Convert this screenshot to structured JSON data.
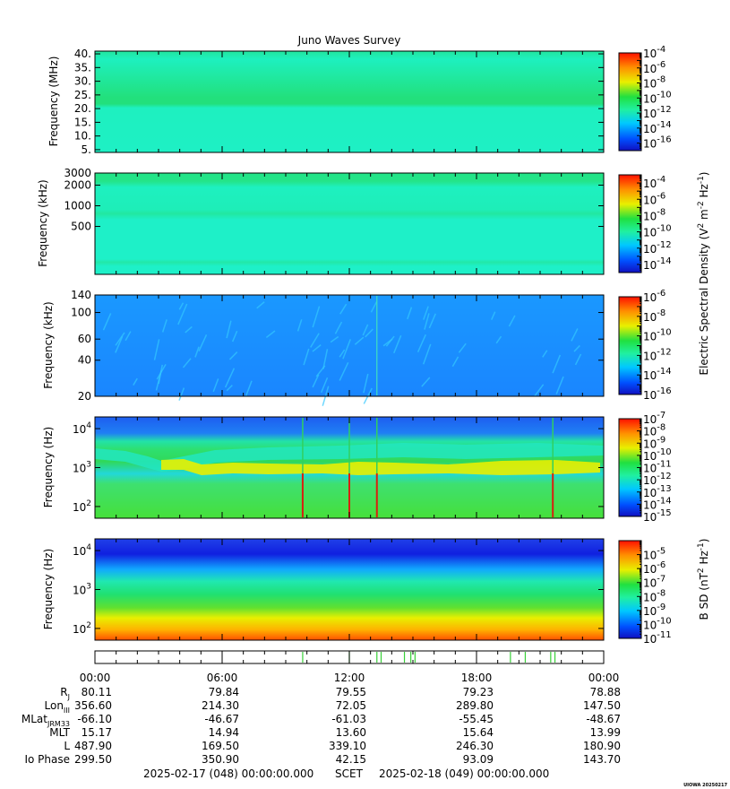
{
  "title": "Juno Waves Survey",
  "colors": {
    "mhz_base": "#1ef0bf",
    "mhz_band": "#22e07c",
    "mhz_top": "#1ee8a0",
    "khz_base": "#1ef0c8",
    "khz_band": "#24e488",
    "lowkhz_base": "#1a90ff",
    "lowkhz_streak": "#33c8ff",
    "hz_top": "#1f6ff0",
    "hz_band": "#22e2a8",
    "hz_mid": "#30d85a",
    "hz_bright": "#e8f000",
    "hz_low": "#44e040",
    "hz_spike": "#d82010",
    "b_top": "#1030e0",
    "b_mid": "#20e070",
    "b_low": "#ff6000",
    "tick_green": "#38d038"
  },
  "chart_data": [
    {
      "type": "heatmap",
      "name": "mhz-panel",
      "ylabel": "Frequency (MHz)",
      "ylim": [
        4,
        41
      ],
      "yticks": [
        {
          "v": 5,
          "label": "5."
        },
        {
          "v": 10,
          "label": "10."
        },
        {
          "v": 15,
          "label": "15."
        },
        {
          "v": 20,
          "label": "20."
        },
        {
          "v": 25,
          "label": "25."
        },
        {
          "v": 30,
          "label": "30."
        },
        {
          "v": 35,
          "label": "35."
        },
        {
          "v": 40,
          "label": "40."
        }
      ],
      "colorbar": {
        "min_exp": -17,
        "max_exp": -4,
        "labels": [
          -4,
          -6,
          -8,
          -10,
          -12,
          -14,
          -16
        ]
      }
    },
    {
      "type": "heatmap",
      "name": "khz-panel",
      "ylabel": "Frequency (kHz)",
      "ylim_log": [
        100,
        3000
      ],
      "yticks": [
        {
          "v": 500,
          "label": "500"
        },
        {
          "v": 1000,
          "label": "1000"
        },
        {
          "v": 2000,
          "label": "2000"
        },
        {
          "v": 3000,
          "label": "3000"
        }
      ],
      "colorbar": {
        "min_exp": -15,
        "max_exp": -3,
        "labels": [
          -4,
          -6,
          -8,
          -10,
          -12,
          -14
        ]
      }
    },
    {
      "type": "heatmap",
      "name": "lowkhz-panel",
      "ylabel": "Frequency (kHz)",
      "ylim_log": [
        20,
        140
      ],
      "yticks": [
        {
          "v": 20,
          "label": "20"
        },
        {
          "v": 40,
          "label": "40"
        },
        {
          "v": 60,
          "label": "60"
        },
        {
          "v": 100,
          "label": "100"
        },
        {
          "v": 140,
          "label": "140"
        }
      ],
      "colorbar": {
        "min_exp": -16,
        "max_exp": -6,
        "labels": [
          -6,
          -8,
          -10,
          -12,
          -14,
          -16
        ]
      }
    },
    {
      "type": "heatmap",
      "name": "hz-panel",
      "ylabel": "Frequency (Hz)",
      "ylim_log": [
        50,
        20000
      ],
      "yticks": [
        {
          "v": 100,
          "base": "10",
          "exp": "2"
        },
        {
          "v": 1000,
          "base": "10",
          "exp": "3"
        },
        {
          "v": 10000,
          "base": "10",
          "exp": "4"
        }
      ],
      "colorbar": {
        "min_exp": -15,
        "max_exp": -7,
        "labels": [
          -7,
          -8,
          -9,
          -10,
          -11,
          -12,
          -13,
          -14,
          -15
        ]
      },
      "spikes_hours": [
        9.8,
        12.0,
        13.3,
        21.6
      ]
    },
    {
      "type": "heatmap",
      "name": "b-panel",
      "ylabel": "Frequency (Hz)",
      "ylim_log": [
        50,
        20000
      ],
      "yticks": [
        {
          "v": 100,
          "base": "10",
          "exp": "2"
        },
        {
          "v": 1000,
          "base": "10",
          "exp": "3"
        },
        {
          "v": 10000,
          "base": "10",
          "exp": "4"
        }
      ],
      "colorbar": {
        "min_exp": -11,
        "max_exp": -4,
        "labels": [
          -5,
          -6,
          -7,
          -8,
          -9,
          -10,
          -11
        ]
      }
    }
  ],
  "colorbar_titles": {
    "electric": {
      "main": "Electric Spectral Density (V",
      "sup1": "2",
      "mid": " m",
      "sup2": "-2",
      "mid2": " Hz",
      "sup3": "-1",
      "end": ")"
    },
    "magnetic": {
      "main": "B SD (nT",
      "sup1": "2",
      "mid": " Hz",
      "sup2": "-1",
      "end": ")"
    }
  },
  "mode_ticks_hours": [
    9.8,
    12.0,
    13.3,
    13.5,
    14.6,
    14.9,
    15.1,
    19.6,
    20.3,
    21.5,
    21.7
  ],
  "x_axis": {
    "range_hours": [
      0,
      24
    ],
    "labels": [
      "00:00",
      "06:00",
      "12:00",
      "18:00",
      "00:00"
    ]
  },
  "ephemeris": {
    "rows": [
      {
        "label": "R",
        "sub": "J",
        "values": [
          "80.11",
          "79.84",
          "79.55",
          "79.23",
          "78.88"
        ]
      },
      {
        "label": "Lon",
        "sub": "III",
        "values": [
          "356.60",
          "214.30",
          "72.05",
          "289.80",
          "147.50"
        ]
      },
      {
        "label": "MLat",
        "sub": "JRM33",
        "values": [
          "-66.10",
          "-46.67",
          "-61.03",
          "-55.45",
          "-48.67"
        ]
      },
      {
        "label": "MLT",
        "sub": "",
        "values": [
          "15.17",
          "14.94",
          "13.60",
          "15.64",
          "13.99"
        ]
      },
      {
        "label": "L",
        "sub": "",
        "values": [
          "487.90",
          "169.50",
          "339.10",
          "246.30",
          "180.90"
        ]
      },
      {
        "label": "Io Phase",
        "sub": "",
        "values": [
          "299.50",
          "350.90",
          "42.15",
          "93.09",
          "143.70"
        ]
      }
    ]
  },
  "footer": {
    "start": "2025-02-17 (048) 00:00:00.000",
    "scet": "SCET",
    "end": "2025-02-18 (049) 00:00:00.000",
    "stamp": "UIOWA 20250217"
  }
}
